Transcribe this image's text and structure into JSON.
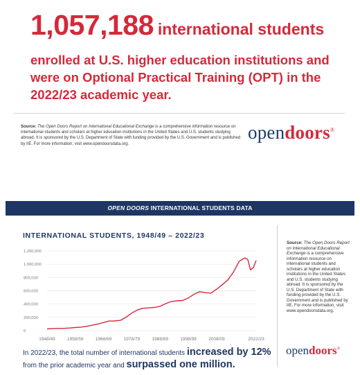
{
  "headline": {
    "number": "1,057,188",
    "number_suffix": "international students",
    "rest": "enrolled at U.S. higher education institutions and were on Optional Practical Training (OPT) in the 2022/23 academic year."
  },
  "source_top": {
    "label": "Source:",
    "publication": "The Open Doors Report on International Educational Exchange",
    "text": "is a comprehensive information resource on international students and scholars at higher education institutions in the United States and U.S. students studying abroad. It is sponsored by the U.S. Department of State with funding provided by the U.S. Government and is published by IIE. For more information, visit www.opendoorsdata.org."
  },
  "logo": {
    "open": "open",
    "doors": "doors",
    "reg": "®"
  },
  "banner": {
    "italic": "OPEN DOORS",
    "rest": " INTERNATIONAL STUDENTS DATA"
  },
  "source_side": {
    "label": "Source:",
    "publication": "The Open Doors Report on International Educational Exchange",
    "text": "is a comprehensive information resource on international students and scholars at higher education institutions in the United States and U.S. students studying abroad. It is sponsored by the U.S. Department of State with funding provided by the U.S. Government and is published by IIE. For more information, visit www.opendoorsdata.org."
  },
  "statement": {
    "part1": "In 2022/23, the total number of international students ",
    "bold1": "increased by 12%",
    "part2": "from the prior academic year and ",
    "bold2": "surpassed one million."
  },
  "colors": {
    "brand_red": "#d5293a",
    "navy": "#1e3663",
    "line": "#d5293a"
  },
  "chart_data": {
    "type": "line",
    "title": "INTERNATIONAL STUDENTS, 1948/49 – 2022/23",
    "xlabel": "",
    "ylabel": "",
    "x_start_year": 1948,
    "x_end_year": 2022,
    "x_tick_labels": [
      "1948/49",
      "1958/59",
      "1968/69",
      "1978/79",
      "1988/89",
      "1998/99",
      "2008/09",
      "2022/23"
    ],
    "x_tick_years": [
      1948,
      1958,
      1968,
      1978,
      1988,
      1998,
      2008,
      2022
    ],
    "y_tick_labels": [
      "0",
      "200,000",
      "400,000",
      "600,000",
      "800,000",
      "1,000,000",
      "1,200,000"
    ],
    "ylim": [
      0,
      1200000
    ],
    "grid": true,
    "series": [
      {
        "name": "",
        "points": [
          [
            1948,
            26000
          ],
          [
            1950,
            30000
          ],
          [
            1952,
            34000
          ],
          [
            1954,
            34000
          ],
          [
            1956,
            40000
          ],
          [
            1958,
            47000
          ],
          [
            1960,
            53000
          ],
          [
            1962,
            65000
          ],
          [
            1964,
            82000
          ],
          [
            1966,
            100000
          ],
          [
            1968,
            122000
          ],
          [
            1970,
            145000
          ],
          [
            1972,
            146000
          ],
          [
            1974,
            155000
          ],
          [
            1976,
            203000
          ],
          [
            1978,
            264000
          ],
          [
            1980,
            312000
          ],
          [
            1982,
            337000
          ],
          [
            1984,
            342000
          ],
          [
            1986,
            350000
          ],
          [
            1988,
            366000
          ],
          [
            1990,
            407000
          ],
          [
            1992,
            439000
          ],
          [
            1994,
            449000
          ],
          [
            1996,
            454000
          ],
          [
            1998,
            491000
          ],
          [
            2000,
            548000
          ],
          [
            2002,
            586000
          ],
          [
            2004,
            572000
          ],
          [
            2006,
            565000
          ],
          [
            2008,
            624000
          ],
          [
            2010,
            691000
          ],
          [
            2012,
            765000
          ],
          [
            2014,
            886000
          ],
          [
            2016,
            1044000
          ],
          [
            2018,
            1095000
          ],
          [
            2019,
            1075000
          ],
          [
            2020,
            914000
          ],
          [
            2021,
            948000
          ],
          [
            2022,
            1057000
          ]
        ]
      }
    ]
  }
}
